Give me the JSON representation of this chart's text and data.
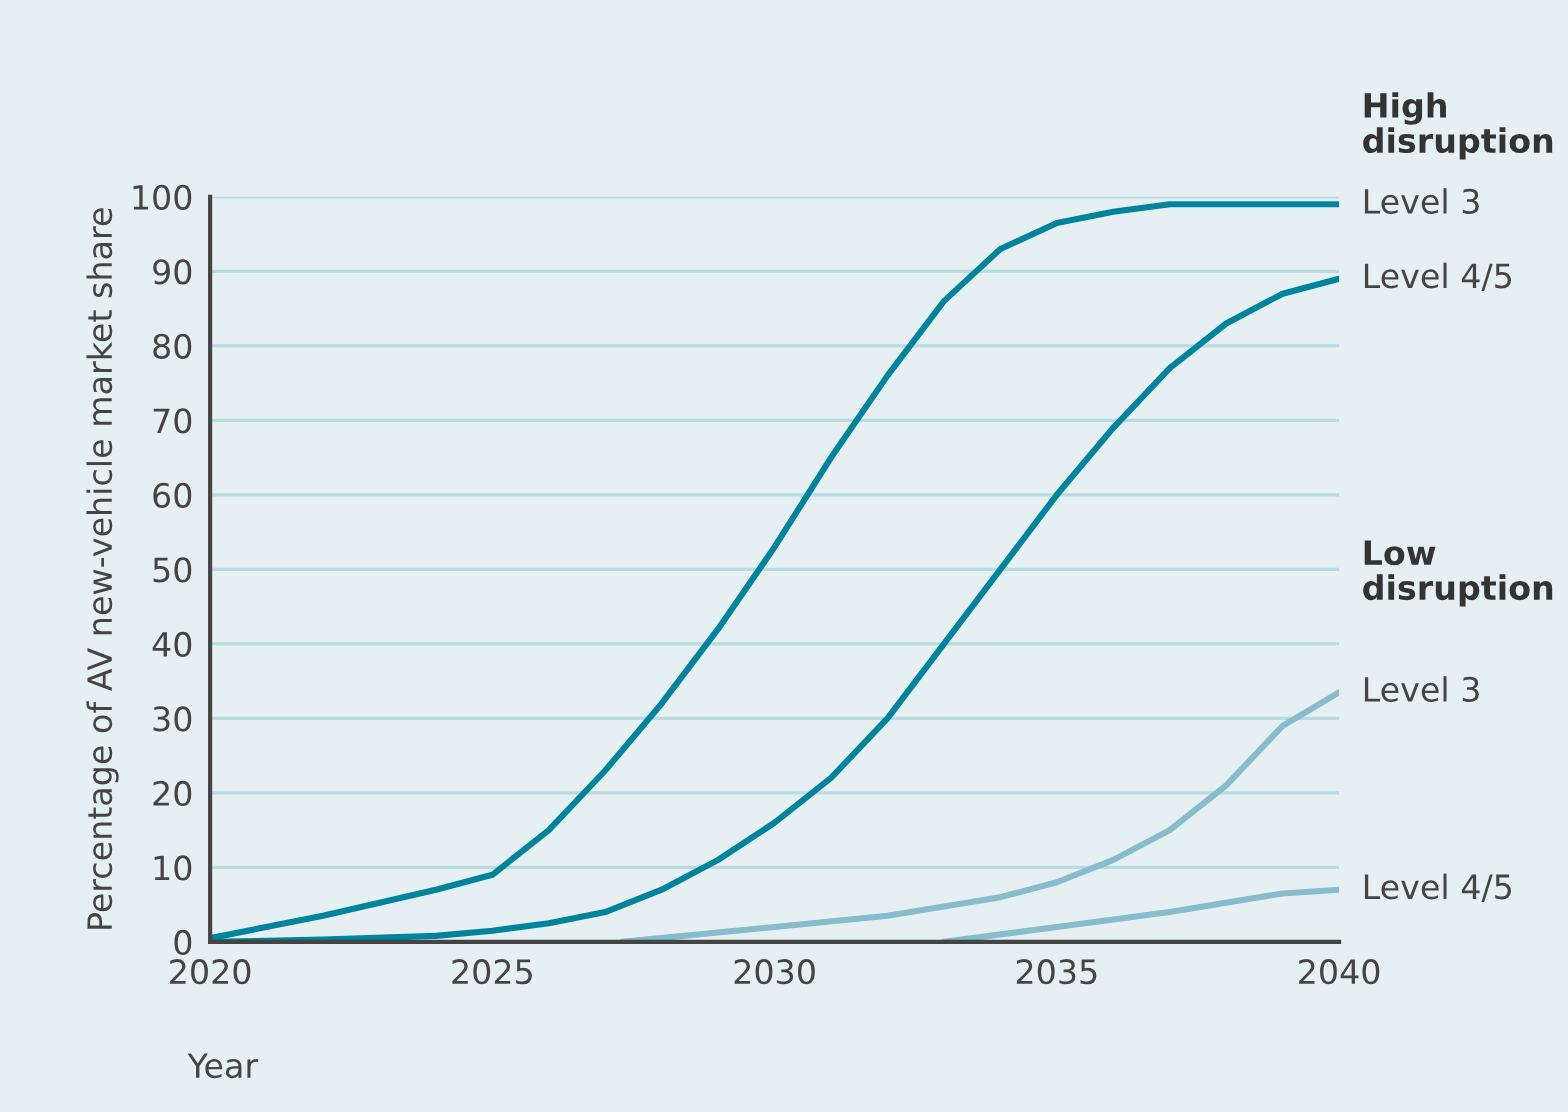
{
  "chart_data": {
    "type": "line",
    "xlabel": "Year",
    "ylabel": "Percentage of AV new-vehicle market share",
    "xlim": [
      2020,
      2040
    ],
    "xticks": [
      2020,
      2025,
      2030,
      2035,
      2040
    ],
    "ylim": [
      0,
      100
    ],
    "yticks": [
      0,
      10,
      20,
      30,
      40,
      50,
      60,
      70,
      80,
      90,
      100
    ],
    "grid": "y",
    "legend": false,
    "line_style": "solid",
    "marker": "none",
    "annotations": [
      "High disruption",
      "Low disruption"
    ],
    "series": [
      {
        "name": "Level 3",
        "color": "#00839c",
        "x": [
          2020,
          2022,
          2024,
          2025,
          2026,
          2027,
          2028,
          2029,
          2030,
          2031,
          2032,
          2033,
          2034,
          2035,
          2036,
          2037,
          2038,
          2040
        ],
        "values": [
          0.5,
          3.5,
          7,
          9,
          15,
          23,
          32,
          42,
          53,
          65,
          76,
          86,
          93,
          96.5,
          98,
          99,
          99,
          99
        ]
      },
      {
        "name": "Level 4/5",
        "color": "#00839c",
        "x": [
          2020,
          2022,
          2024,
          2025,
          2026,
          2027,
          2028,
          2029,
          2030,
          2031,
          2032,
          2033,
          2034,
          2035,
          2036,
          2037,
          2038,
          2039,
          2040
        ],
        "values": [
          0,
          0.3,
          0.8,
          1.5,
          2.5,
          4,
          7,
          11,
          16,
          22,
          30,
          40,
          50,
          60,
          69,
          77,
          83,
          87,
          89
        ]
      },
      {
        "name": "Level 3",
        "color": "#86bccb",
        "x": [
          2027.3,
          2030,
          2032,
          2034,
          2035,
          2036,
          2037,
          2038,
          2039,
          2040
        ],
        "values": [
          0,
          2,
          3.5,
          6,
          8,
          11,
          15,
          21,
          29,
          33.5
        ]
      },
      {
        "name": "Level 4/5",
        "color": "#86bccb",
        "x": [
          2033,
          2035,
          2037,
          2039,
          2040
        ],
        "values": [
          0,
          2,
          4,
          6.5,
          7
        ]
      }
    ]
  }
}
